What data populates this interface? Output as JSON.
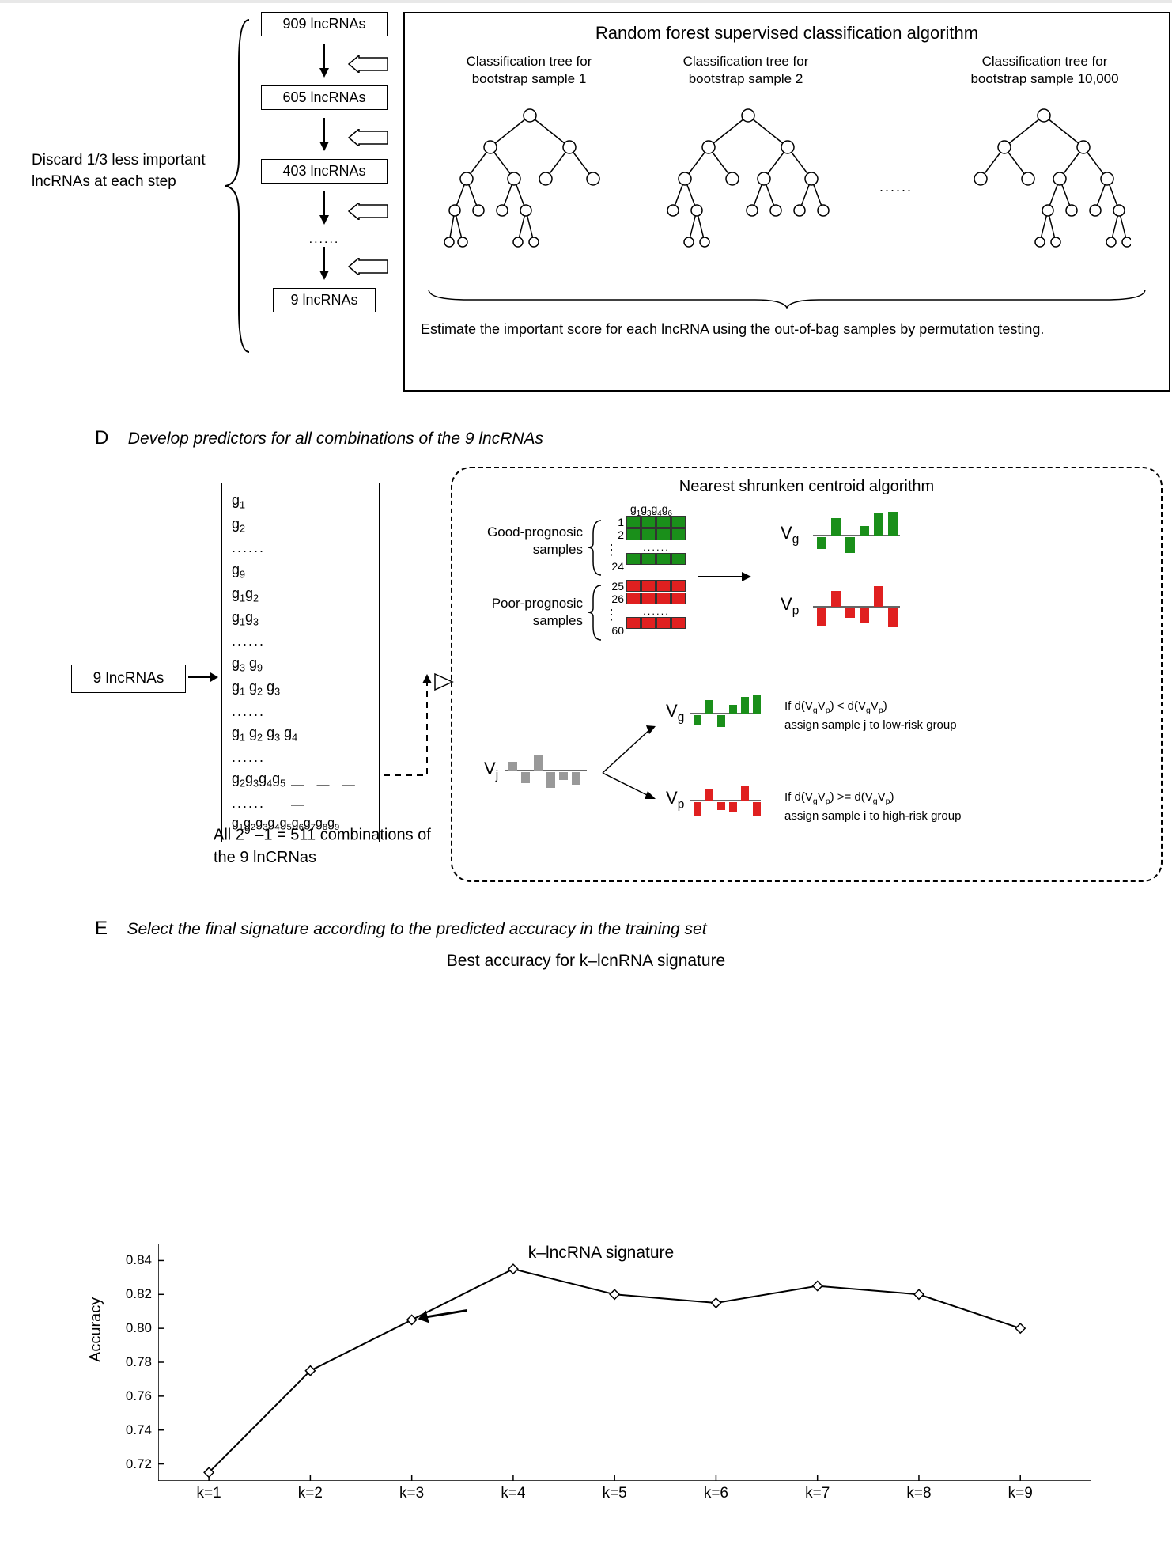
{
  "sectionC": {
    "discard_text": "Discard 1/3 less important lncRNAs at each step",
    "boxes": [
      "909 lncRNAs",
      "605 lncRNAs",
      "403 lncRNAs",
      "9 lncRNAs"
    ],
    "rf_title": "Random forest supervised classification algorithm",
    "tree_labels": [
      "Classification tree for\nbootstrap sample 1",
      "Classification tree for\nbootstrap sample 2",
      "Classification tree for\nbootstrap sample 10,000"
    ],
    "dots": "......",
    "estimate_text": "Estimate the important score for each lncRNA using the out-of-bag samples by permutation testing."
  },
  "sectionD": {
    "letter": "D",
    "title": "Develop predictors for all combinations of the 9 lncRNAs",
    "nine_box": "9 lncRNAs",
    "combos_caption": "All 2⁹ –1 = 511 combinations of the 9 lnCRNas",
    "nsc_title": "Nearest shrunken centroid algorithm",
    "good_label": "Good-prognosic samples",
    "poor_label": "Poor-prognosic samples",
    "col_header": "g₁g₃g₄g₆",
    "row_nums": [
      "1",
      "2",
      "24",
      "25",
      "26",
      "60"
    ],
    "decision1": "If d(V_g V_p) < d(V_g V_p)\nassign sample j to low-risk group",
    "decision2": "If d(V_g V_p) >= d(V_g V_p)\nassign sample i to high-risk group",
    "vg": "V",
    "vg_sub": "g",
    "vp": "V",
    "vp_sub": "p",
    "vj_sub": "j",
    "colors": {
      "green": "#1a8f1a",
      "red": "#e02020",
      "gray": "#999999"
    }
  },
  "sectionE": {
    "letter": "E",
    "title": "Select the final signature according to the predicted accuracy in the training set",
    "chart_title": "Best accuracy for k–lcnRNA signature",
    "y_label": "Accuracy",
    "x_label": "k–lncRNA signature",
    "y_ticks": [
      "0.72",
      "0.74",
      "0.76",
      "0.78",
      "0.80",
      "0.82",
      "0.84"
    ],
    "x_ticks": [
      "k=1",
      "k=2",
      "k=3",
      "k=4",
      "k=5",
      "k=6",
      "k=7",
      "k=8",
      "k=9"
    ],
    "ylim": [
      0.71,
      0.85
    ],
    "data_points": [
      0.715,
      0.775,
      0.805,
      0.835,
      0.82,
      0.815,
      0.825,
      0.82,
      0.8
    ],
    "arrow_at_k": 3,
    "line_color": "#000000",
    "marker": "diamond"
  }
}
